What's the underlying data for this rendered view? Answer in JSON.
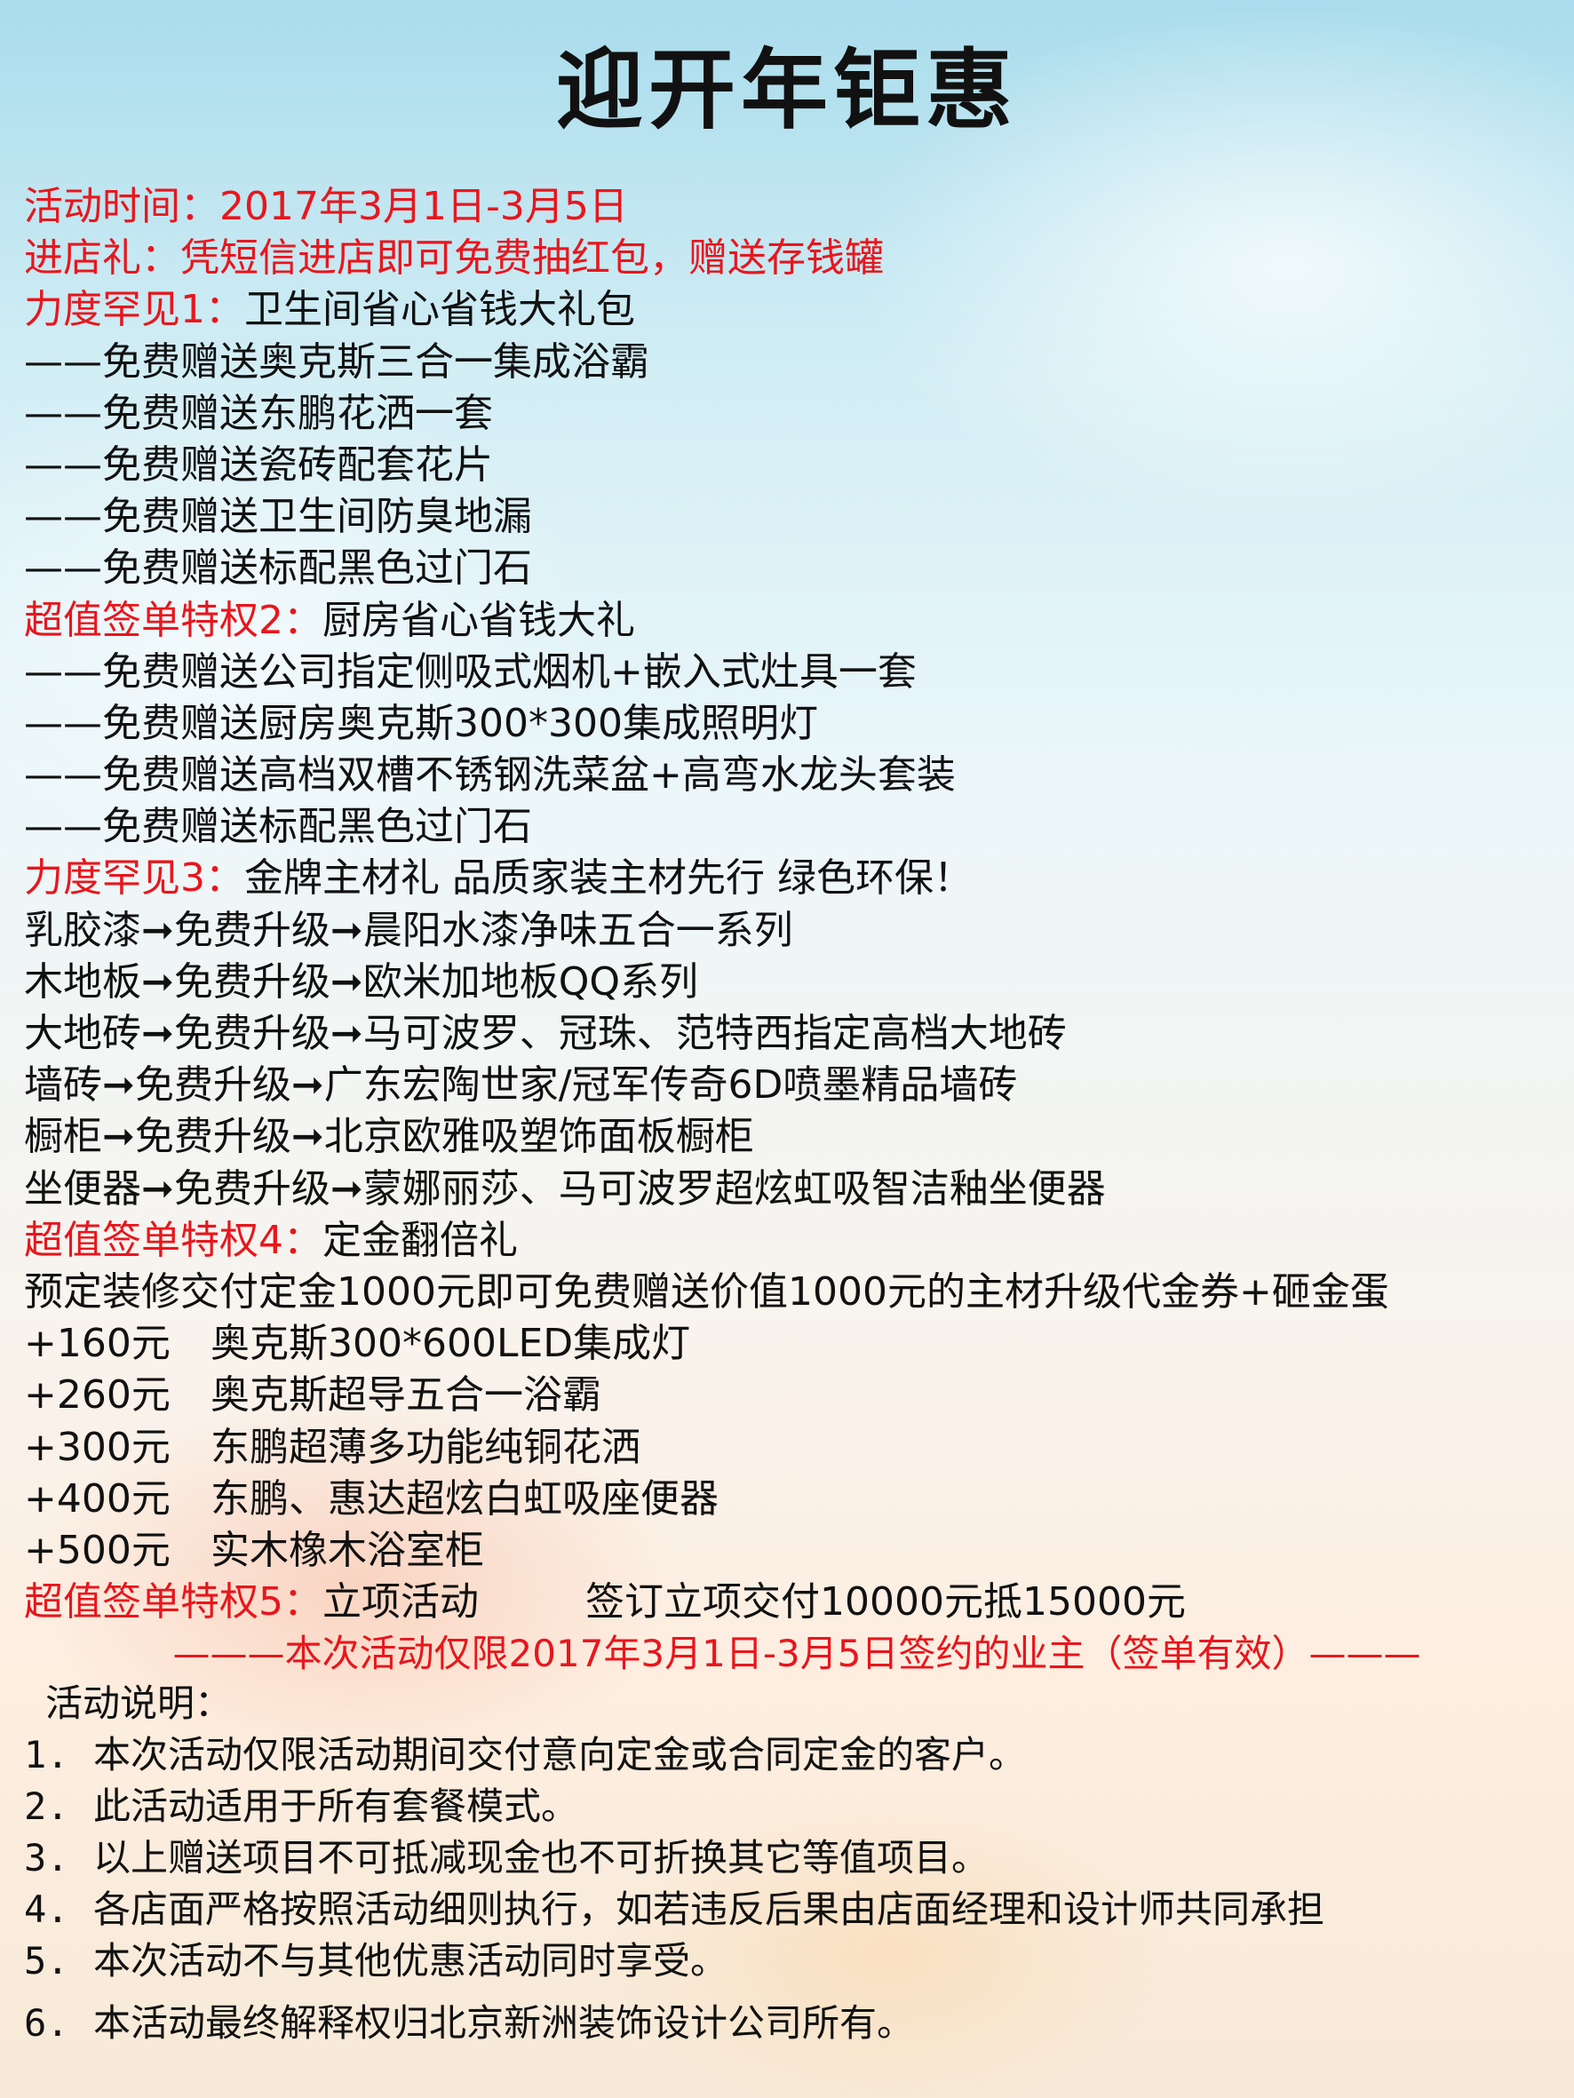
{
  "title": "迎开年钜惠",
  "header_lines": [
    {
      "text": "活动时间：2017年3月1日-3月5日"
    },
    {
      "text": "进店礼：凭短信进店即可免费抽红包，赠送存钱罐"
    }
  ],
  "section1": {
    "label": "力度罕见1：",
    "text": "卫生间省心省钱大礼包",
    "items": [
      "——免费赠送奥克斯三合一集成浴霸",
      "——免费赠送东鹏花洒一套",
      "——免费赠送瓷砖配套花片",
      "——免费赠送卫生间防臭地漏",
      "——免费赠送标配黑色过门石"
    ]
  },
  "section2": {
    "label": "超值签单特权2：",
    "text": "厨房省心省钱大礼",
    "items": [
      "——免费赠送公司指定侧吸式烟机+嵌入式灶具一套",
      "——免费赠送厨房奥克斯300*300集成照明灯",
      "——免费赠送高档双槽不锈钢洗菜盆+高弯水龙头套装",
      "——免费赠送标配黑色过门石"
    ]
  },
  "section3": {
    "label": "力度罕见3：",
    "text": "金牌主材礼 品质家装主材先行 绿色环保！",
    "items": [
      "乳胶漆➞免费升级➞晨阳水漆净味五合一系列",
      "木地板➞免费升级➞欧米加地板QQ系列",
      "大地砖➞免费升级➞马可波罗、冠珠、范特西指定高档大地砖",
      "墙砖➞免费升级➞广东宏陶世家/冠军传奇6D喷墨精品墙砖",
      "橱柜➞免费升级➞北京欧雅吸塑饰面板橱柜",
      "坐便器➞免费升级➞蒙娜丽莎、马可波罗超炫虹吸智洁釉坐便器"
    ]
  },
  "section4": {
    "label": "超值签单特权4：",
    "text": "定金翻倍礼",
    "intro": "预定装修交付定金1000元即可免费赠送价值1000元的主材升级代金券+砸金蛋",
    "bonuses": [
      {
        "amount": "+160元",
        "item": "奥克斯300*600LED集成灯"
      },
      {
        "amount": "+260元",
        "item": "奥克斯超导五合一浴霸"
      },
      {
        "amount": "+300元",
        "item": "东鹏超薄多功能纯铜花洒"
      },
      {
        "amount": "+400元",
        "item": "东鹏、惠达超炫白虹吸座便器"
      },
      {
        "amount": "+500元",
        "item": "实木橡木浴室柜"
      }
    ]
  },
  "section5": {
    "label": "超值签单特权5：",
    "text": "立项活动",
    "detail": "签订立项交付10000元抵15000元"
  },
  "banner": "———本次活动仅限2017年3月1日-3月5日签约的业主（签单有效）———",
  "notes": {
    "heading": "活动说明：",
    "items": [
      {
        "num": "1.",
        "text": "本次活动仅限活动期间交付意向定金或合同定金的客户。"
      },
      {
        "num": "2.",
        "text": "此活动适用于所有套餐模式。"
      },
      {
        "num": "3.",
        "text": "以上赠送项目不可抵减现金也不可折换其它等值项目。"
      },
      {
        "num": "4.",
        "text": "各店面严格按照活动细则执行，如若违反后果由店面经理和设计师共同承担"
      },
      {
        "num": "5.",
        "text": "本次活动不与其他优惠活动同时享受。"
      },
      {
        "num": "6.",
        "text": "本活动最终解释权归北京新洲装饰设计公司所有。"
      }
    ]
  },
  "colors": {
    "accent": "#e8161d",
    "text": "#111111"
  }
}
